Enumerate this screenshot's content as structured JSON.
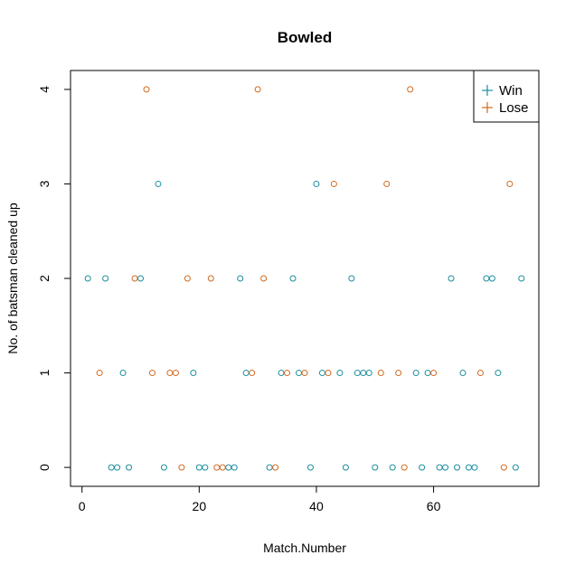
{
  "chart_data": {
    "type": "scatter",
    "title": "Bowled",
    "xlabel": "Match.Number",
    "ylabel": "No. of batsman cleaned up",
    "xlim": [
      -1.96,
      77.96
    ],
    "ylim": [
      -0.2,
      4.2
    ],
    "xticks": [
      0,
      20,
      40,
      60
    ],
    "yticks": [
      0,
      1,
      2,
      3,
      4
    ],
    "grid": false,
    "legend_position": "top-right",
    "colors": {
      "Win": "#1b8e9e",
      "Lose": "#d2691e"
    },
    "series": [
      {
        "name": "Win",
        "points": [
          [
            1,
            2
          ],
          [
            4,
            2
          ],
          [
            5,
            0
          ],
          [
            6,
            0
          ],
          [
            7,
            1
          ],
          [
            8,
            0
          ],
          [
            10,
            2
          ],
          [
            13,
            3
          ],
          [
            14,
            0
          ],
          [
            19,
            1
          ],
          [
            20,
            0
          ],
          [
            21,
            0
          ],
          [
            25,
            0
          ],
          [
            26,
            0
          ],
          [
            27,
            2
          ],
          [
            28,
            1
          ],
          [
            32,
            0
          ],
          [
            34,
            1
          ],
          [
            36,
            2
          ],
          [
            37,
            1
          ],
          [
            39,
            0
          ],
          [
            40,
            3
          ],
          [
            41,
            1
          ],
          [
            44,
            1
          ],
          [
            45,
            0
          ],
          [
            46,
            2
          ],
          [
            47,
            1
          ],
          [
            48,
            1
          ],
          [
            49,
            1
          ],
          [
            50,
            0
          ],
          [
            53,
            0
          ],
          [
            57,
            1
          ],
          [
            58,
            0
          ],
          [
            59,
            1
          ],
          [
            61,
            0
          ],
          [
            62,
            0
          ],
          [
            63,
            2
          ],
          [
            64,
            0
          ],
          [
            65,
            1
          ],
          [
            66,
            0
          ],
          [
            67,
            0
          ],
          [
            69,
            2
          ],
          [
            70,
            2
          ],
          [
            71,
            1
          ],
          [
            74,
            0
          ],
          [
            75,
            2
          ]
        ]
      },
      {
        "name": "Lose",
        "points": [
          [
            3,
            1
          ],
          [
            9,
            2
          ],
          [
            11,
            4
          ],
          [
            12,
            1
          ],
          [
            15,
            1
          ],
          [
            16,
            1
          ],
          [
            17,
            0
          ],
          [
            18,
            2
          ],
          [
            22,
            2
          ],
          [
            23,
            0
          ],
          [
            24,
            0
          ],
          [
            29,
            1
          ],
          [
            30,
            4
          ],
          [
            31,
            2
          ],
          [
            33,
            0
          ],
          [
            35,
            1
          ],
          [
            38,
            1
          ],
          [
            42,
            1
          ],
          [
            43,
            3
          ],
          [
            51,
            1
          ],
          [
            52,
            3
          ],
          [
            54,
            1
          ],
          [
            55,
            0
          ],
          [
            56,
            4
          ],
          [
            60,
            1
          ],
          [
            68,
            1
          ],
          [
            72,
            0
          ],
          [
            73,
            3
          ]
        ]
      }
    ]
  }
}
